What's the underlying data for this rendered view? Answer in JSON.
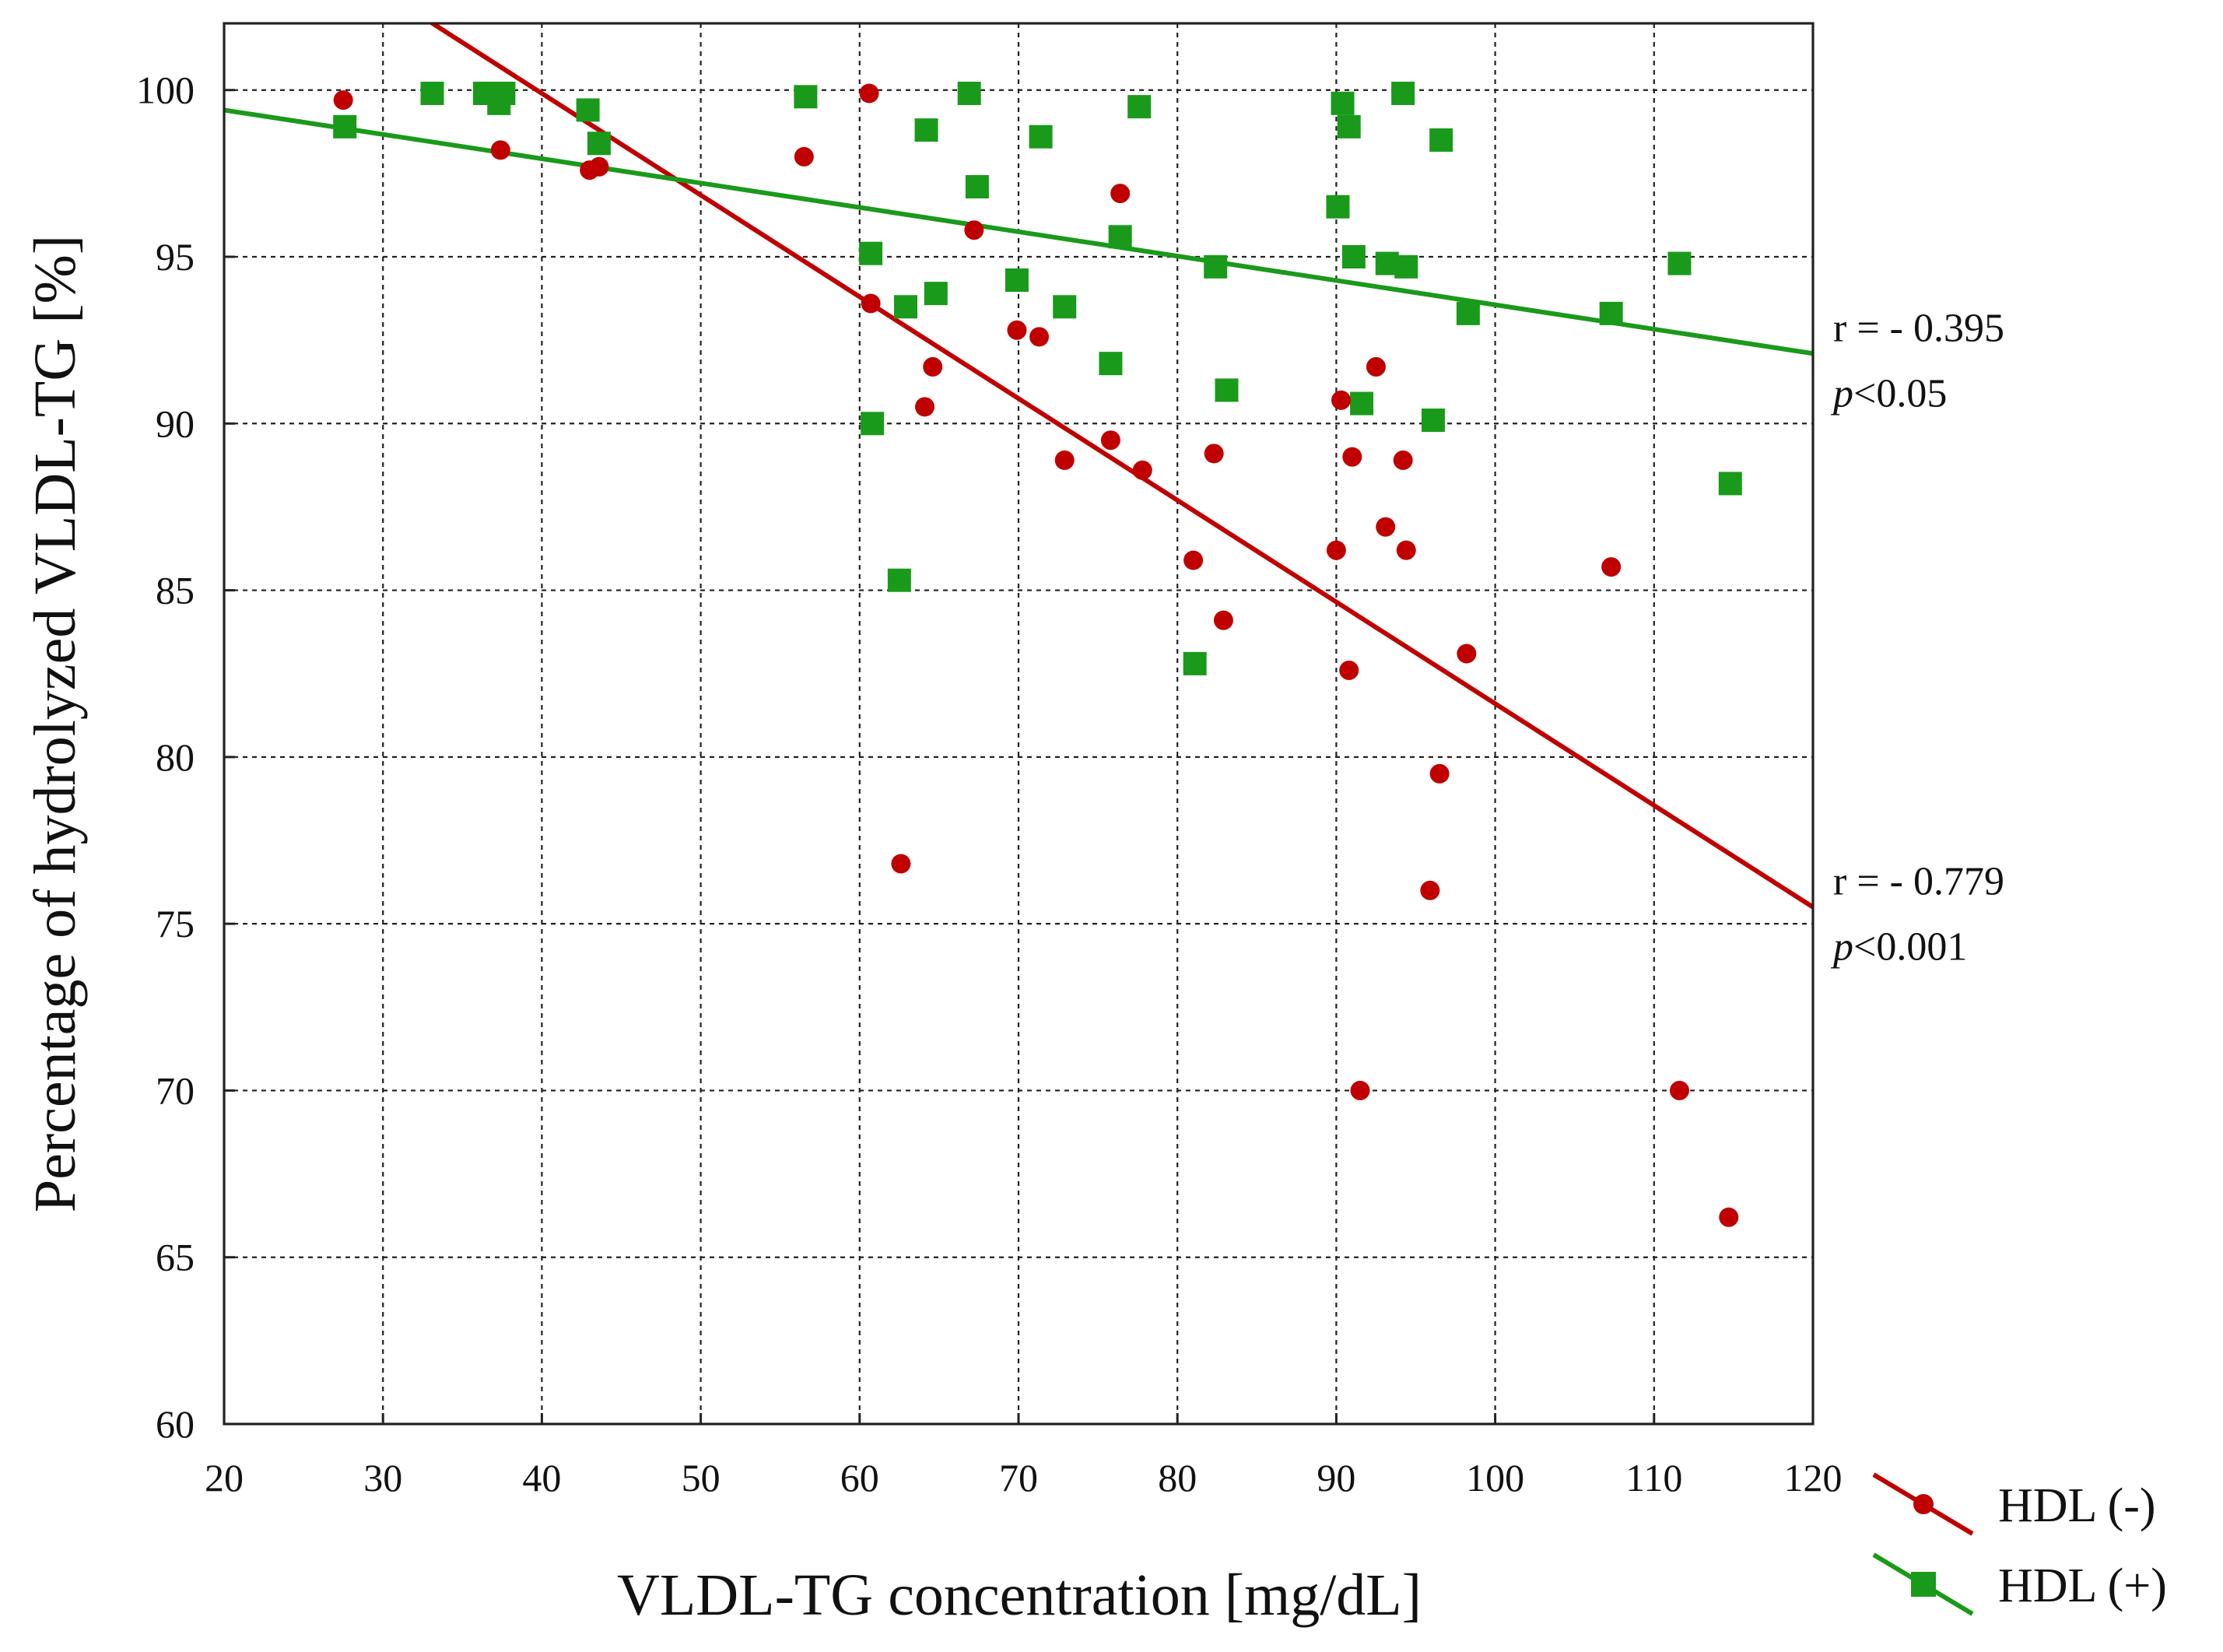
{
  "chart_data": {
    "type": "scatter",
    "title": "",
    "xlabel": "VLDL-TG concentration [mg/dL]",
    "ylabel": "Percentage of hydrolyzed VLDL-TG [%]",
    "xlim": [
      20,
      120
    ],
    "ylim": [
      60,
      102
    ],
    "x_ticks": [
      20,
      30,
      40,
      50,
      60,
      70,
      80,
      90,
      100,
      110,
      120
    ],
    "y_ticks": [
      60,
      65,
      70,
      75,
      80,
      85,
      90,
      95,
      100
    ],
    "grid": true,
    "legend_position": "bottom-right-outside",
    "series": [
      {
        "name": "HDL (-)",
        "marker": "circle",
        "color": "#c00000",
        "points": [
          [
            27.5,
            99.7
          ],
          [
            37.4,
            98.2
          ],
          [
            43.0,
            97.6
          ],
          [
            43.6,
            97.7
          ],
          [
            56.5,
            98.0
          ],
          [
            60.6,
            99.9
          ],
          [
            60.7,
            93.6
          ],
          [
            62.6,
            76.8
          ],
          [
            64.1,
            90.5
          ],
          [
            64.6,
            91.7
          ],
          [
            67.2,
            95.8
          ],
          [
            69.9,
            92.8
          ],
          [
            71.3,
            92.6
          ],
          [
            72.9,
            88.9
          ],
          [
            75.8,
            89.5
          ],
          [
            76.4,
            96.9
          ],
          [
            77.8,
            88.6
          ],
          [
            81.0,
            85.9
          ],
          [
            82.3,
            89.1
          ],
          [
            82.9,
            84.1
          ],
          [
            90.0,
            86.2
          ],
          [
            90.3,
            90.7
          ],
          [
            90.8,
            82.6
          ],
          [
            91.0,
            89.0
          ],
          [
            91.5,
            70.0
          ],
          [
            92.5,
            91.7
          ],
          [
            93.1,
            86.9
          ],
          [
            94.2,
            88.9
          ],
          [
            94.4,
            86.2
          ],
          [
            95.9,
            76.0
          ],
          [
            96.5,
            79.5
          ],
          [
            98.2,
            83.1
          ],
          [
            107.3,
            85.7
          ],
          [
            111.6,
            70.0
          ],
          [
            114.7,
            66.2
          ]
        ],
        "fit": {
          "x": [
            20,
            120
          ],
          "y": [
            106.0,
            75.5
          ]
        },
        "annotation": {
          "r": "r = - 0.779",
          "p_prefix": "p",
          "p_rest": "<0.001"
        }
      },
      {
        "name": "HDL (+)",
        "marker": "square",
        "color": "#1a9a1a",
        "points": [
          [
            27.6,
            98.9
          ],
          [
            33.1,
            99.9
          ],
          [
            36.4,
            99.9
          ],
          [
            37.3,
            99.6
          ],
          [
            37.6,
            99.9
          ],
          [
            42.9,
            99.4
          ],
          [
            43.6,
            98.4
          ],
          [
            56.6,
            99.8
          ],
          [
            60.7,
            95.1
          ],
          [
            60.8,
            90.0
          ],
          [
            62.5,
            85.3
          ],
          [
            62.9,
            93.5
          ],
          [
            64.2,
            98.8
          ],
          [
            64.8,
            93.9
          ],
          [
            66.9,
            99.9
          ],
          [
            67.4,
            97.1
          ],
          [
            69.9,
            94.3
          ],
          [
            71.4,
            98.6
          ],
          [
            72.9,
            93.5
          ],
          [
            75.8,
            91.8
          ],
          [
            76.4,
            95.6
          ],
          [
            77.6,
            99.5
          ],
          [
            81.1,
            82.8
          ],
          [
            82.4,
            94.7
          ],
          [
            83.1,
            91.0
          ],
          [
            90.1,
            96.5
          ],
          [
            90.4,
            99.6
          ],
          [
            90.8,
            98.9
          ],
          [
            91.1,
            95.0
          ],
          [
            91.6,
            90.6
          ],
          [
            93.2,
            94.8
          ],
          [
            94.2,
            99.9
          ],
          [
            94.4,
            94.7
          ],
          [
            96.1,
            90.1
          ],
          [
            96.6,
            98.5
          ],
          [
            98.3,
            93.3
          ],
          [
            107.3,
            93.3
          ],
          [
            111.6,
            94.8
          ],
          [
            114.8,
            88.2
          ]
        ],
        "fit": {
          "x": [
            20,
            120
          ],
          "y": [
            99.4,
            92.1
          ]
        },
        "annotation": {
          "r": "r = - 0.395",
          "p_prefix": "p",
          "p_rest": "<0.05"
        }
      }
    ]
  }
}
